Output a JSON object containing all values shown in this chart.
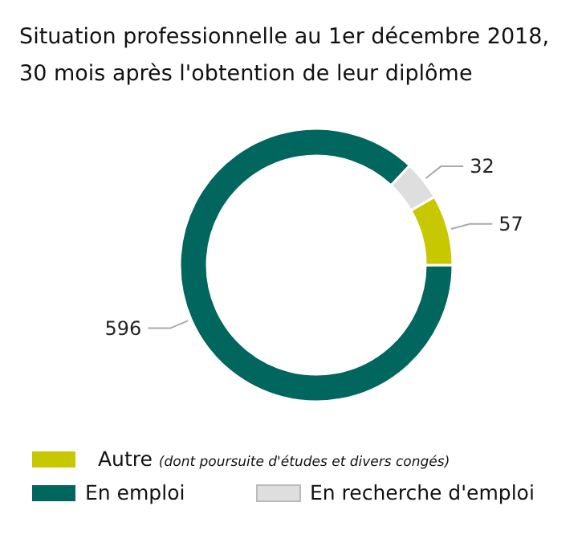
{
  "chart_data": {
    "type": "donut",
    "title": "Situation professionnelle au 1er décembre 2018, 30 mois après l'obtention de leur diplôme",
    "categories": [
      "Autre (dont poursuite d'études et divers congés)",
      "En emploi",
      "En recherche d'emploi"
    ],
    "values": [
      57,
      596,
      32
    ],
    "colors": [
      "#c8c800",
      "#00665e",
      "#dedede"
    ],
    "data_labels": true,
    "legend": "bottom"
  }
}
